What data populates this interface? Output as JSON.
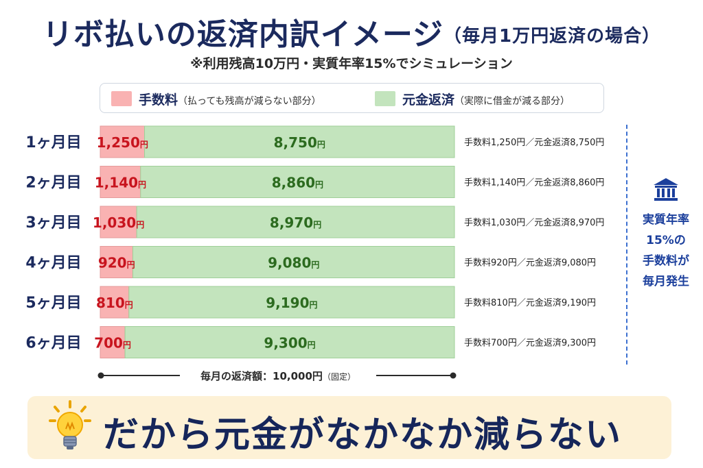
{
  "header": {
    "title": "リボ払いの返済内訳イメージ",
    "title_paren": "（毎月1万円返済の場合）",
    "subtitle": "※利用残高10万円・実質年率15%でシミュレーション"
  },
  "legend": {
    "fee_label": "手数料",
    "fee_note": "（払っても残高が減らない部分）",
    "principal_label": "元金返済",
    "principal_note": "（実際に借金が減る部分）"
  },
  "colors": {
    "fee_fill": "#f9b2b2",
    "fee_text": "#c8141e",
    "principal_fill": "#c3e4bd",
    "principal_text": "#2c6b1f",
    "title": "#1b2a5e",
    "note": "#1b3f9c"
  },
  "chart_data": {
    "type": "bar",
    "stacked": true,
    "orientation": "horizontal",
    "categories": [
      "1ヶ月目",
      "2ヶ月目",
      "3ヶ月目",
      "4ヶ月目",
      "5ヶ月目",
      "6ヶ月目"
    ],
    "series": [
      {
        "name": "手数料",
        "values": [
          1250,
          1140,
          1030,
          920,
          810,
          700
        ]
      },
      {
        "name": "元金返済",
        "values": [
          8750,
          8860,
          8970,
          9080,
          9190,
          9300
        ]
      }
    ],
    "bar_labels": {
      "fee": [
        "1,250",
        "1,140",
        "1,030",
        "920",
        "810",
        "700"
      ],
      "principal": [
        "8,750",
        "8,860",
        "8,970",
        "9,080",
        "9,190",
        "9,300"
      ],
      "unit": "円"
    },
    "row_notes": [
      "手数料1,250円／元金返済8,750円",
      "手数料1,140円／元金返済8,860円",
      "手数料1,030円／元金返済8,970円",
      "手数料920円／元金返済9,080円",
      "手数料810円／元金返済9,190円",
      "手数料700円／元金返済9,300円"
    ],
    "total": 10000,
    "total_label": "毎月の返済額：10,000円",
    "total_note": "（固定）",
    "xlim": [
      0,
      10000
    ]
  },
  "side_note": {
    "icon": "bank-icon",
    "lines": [
      "実質年率",
      "15%の",
      "手数料が",
      "毎月発生"
    ]
  },
  "banner": {
    "icon": "lightbulb-icon",
    "text": "だから元金がなかなか減らない"
  }
}
